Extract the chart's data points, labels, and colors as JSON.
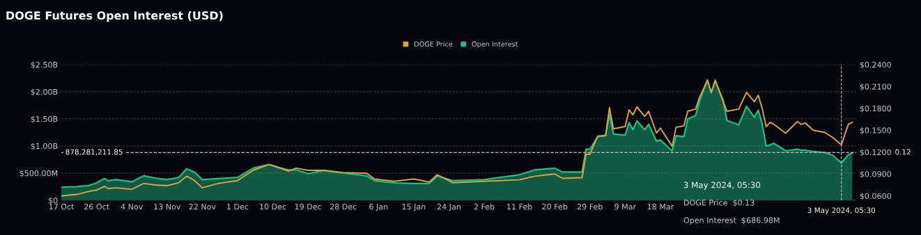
{
  "chart_data": {
    "type": "area",
    "title": "DOGE Futures Open Interest (USD)",
    "x": [
      "2023-10-17",
      "2023-10-21",
      "2023-10-24",
      "2023-10-26",
      "2023-10-28",
      "2023-10-29",
      "2023-10-31",
      "2023-11-04",
      "2023-11-07",
      "2023-11-10",
      "2023-11-13",
      "2023-11-16",
      "2023-11-18",
      "2023-11-20",
      "2023-11-22",
      "2023-11-26",
      "2023-12-01",
      "2023-12-05",
      "2023-12-09",
      "2023-12-11",
      "2023-12-14",
      "2023-12-16",
      "2023-12-19",
      "2023-12-23",
      "2023-12-28",
      "2024-01-03",
      "2024-01-05",
      "2024-01-10",
      "2024-01-15",
      "2024-01-19",
      "2024-01-21",
      "2024-01-25",
      "2024-02-02",
      "2024-02-11",
      "2024-02-15",
      "2024-02-20",
      "2024-02-22",
      "2024-02-27",
      "2024-02-28",
      "2024-02-29",
      "2024-03-02",
      "2024-03-04",
      "2024-03-05",
      "2024-03-06",
      "2024-03-09",
      "2024-03-10",
      "2024-03-11",
      "2024-03-12",
      "2024-03-14",
      "2024-03-15",
      "2024-03-17",
      "2024-03-18",
      "2024-03-21",
      "2024-03-22",
      "2024-03-24",
      "2024-03-25",
      "2024-03-27",
      "2024-03-28",
      "2024-03-30",
      "2024-03-31",
      "2024-04-01",
      "2024-04-03",
      "2024-04-04",
      "2024-04-07",
      "2024-04-09",
      "2024-04-11",
      "2024-04-12",
      "2024-04-13",
      "2024-04-14",
      "2024-04-15",
      "2024-04-16",
      "2024-04-19",
      "2024-04-22",
      "2024-04-23",
      "2024-04-24",
      "2024-04-26",
      "2024-04-29",
      "2024-05-01",
      "2024-05-03T05:30",
      "2024-05-05",
      "2024-05-06"
    ],
    "series": [
      {
        "name": "DOGE Price",
        "type": "line",
        "axis": "y2",
        "color": "#d9a441",
        "values": [
          0.06,
          0.062,
          0.066,
          0.068,
          0.073,
          0.07,
          0.071,
          0.069,
          0.077,
          0.075,
          0.074,
          0.078,
          0.087,
          0.081,
          0.071,
          0.077,
          0.081,
          0.095,
          0.103,
          0.1,
          0.094,
          0.098,
          0.095,
          0.095,
          0.092,
          0.091,
          0.083,
          0.08,
          0.083,
          0.079,
          0.089,
          0.078,
          0.08,
          0.082,
          0.087,
          0.09,
          0.084,
          0.085,
          0.117,
          0.117,
          0.142,
          0.143,
          0.181,
          0.152,
          0.155,
          0.178,
          0.171,
          0.182,
          0.169,
          0.176,
          0.146,
          0.153,
          0.128,
          0.154,
          0.156,
          0.176,
          0.179,
          0.195,
          0.218,
          0.202,
          0.219,
          0.19,
          0.176,
          0.179,
          0.202,
          0.189,
          0.198,
          0.18,
          0.155,
          0.161,
          0.158,
          0.146,
          0.162,
          0.158,
          0.16,
          0.15,
          0.147,
          0.14,
          0.13,
          0.158,
          0.161
        ]
      },
      {
        "name": "Open Interest",
        "color": "#1dbf85",
        "values": [
          240000000.0,
          250000000.0,
          270000000.0,
          320000000.0,
          400000000.0,
          360000000.0,
          380000000.0,
          340000000.0,
          450000000.0,
          410000000.0,
          380000000.0,
          420000000.0,
          580000000.0,
          520000000.0,
          380000000.0,
          400000000.0,
          420000000.0,
          590000000.0,
          660000000.0,
          610000000.0,
          560000000.0,
          560000000.0,
          490000000.0,
          550000000.0,
          500000000.0,
          450000000.0,
          360000000.0,
          320000000.0,
          310000000.0,
          310000000.0,
          450000000.0,
          360000000.0,
          380000000.0,
          470000000.0,
          560000000.0,
          590000000.0,
          520000000.0,
          520000000.0,
          940000000.0,
          940000000.0,
          1170000000.0,
          1190000000.0,
          1580000000.0,
          1220000000.0,
          1200000000.0,
          1430000000.0,
          1300000000.0,
          1460000000.0,
          1300000000.0,
          1400000000.0,
          1090000000.0,
          1110000000.0,
          910000000.0,
          1190000000.0,
          1170000000.0,
          1500000000.0,
          1560000000.0,
          1830000000.0,
          2220000000.0,
          1980000000.0,
          2200000000.0,
          1850000000.0,
          1470000000.0,
          1390000000.0,
          1730000000.0,
          1530000000.0,
          1660000000.0,
          1410000000.0,
          1000000000.0,
          1020000000.0,
          1050000000.0,
          910000000.0,
          940000000.0,
          920000000.0,
          920000000.0,
          900000000.0,
          880000000.0,
          830000000.0,
          687000000.0,
          840000000.0,
          870000000.0
        ]
      }
    ],
    "xlim": [
      "2023-10-17",
      "2024-05-07"
    ],
    "xticks": [
      {
        "value": "2023-10-17",
        "label": "17 Oct"
      },
      {
        "value": "2023-10-26",
        "label": "26 Oct"
      },
      {
        "value": "2023-11-04",
        "label": "4 Nov"
      },
      {
        "value": "2023-11-13",
        "label": "13 Nov"
      },
      {
        "value": "2023-11-22",
        "label": "22 Nov"
      },
      {
        "value": "2023-12-01",
        "label": "1 Dec"
      },
      {
        "value": "2023-12-10",
        "label": "10 Dec"
      },
      {
        "value": "2023-12-19",
        "label": "19 Dec"
      },
      {
        "value": "2023-12-28",
        "label": "28 Dec"
      },
      {
        "value": "2024-01-06",
        "label": "6 Jan"
      },
      {
        "value": "2024-01-15",
        "label": "15 Jan"
      },
      {
        "value": "2024-01-24",
        "label": "24 Jan"
      },
      {
        "value": "2024-02-02",
        "label": "2 Feb"
      },
      {
        "value": "2024-02-11",
        "label": "11 Feb"
      },
      {
        "value": "2024-02-20",
        "label": "20 Feb"
      },
      {
        "value": "2024-02-29",
        "label": "29 Feb"
      },
      {
        "value": "2024-03-09",
        "label": "9 Mar"
      },
      {
        "value": "2024-03-18",
        "label": "18 Mar"
      }
    ],
    "ylim": [
      0,
      2500000000
    ],
    "yticks": [
      {
        "value": 0,
        "label": "$0"
      },
      {
        "value": 500000000,
        "label": "$500.00M"
      },
      {
        "value": 1000000000,
        "label": "$1.00B"
      },
      {
        "value": 1500000000,
        "label": "$1.50B"
      },
      {
        "value": 2000000000,
        "label": "$2.00B"
      },
      {
        "value": 2500000000,
        "label": "$2.50B"
      }
    ],
    "y2lim": [
      0.054,
      0.24
    ],
    "y2ticks": [
      {
        "value": 0.06,
        "label": "$0.0600"
      },
      {
        "value": 0.09,
        "label": "$0.0900"
      },
      {
        "value": 0.12,
        "label": "$0.1200"
      },
      {
        "value": 0.15,
        "label": "$0.1500"
      },
      {
        "value": 0.18,
        "label": "$0.1800"
      },
      {
        "value": 0.21,
        "label": "$0.2100"
      },
      {
        "value": 0.24,
        "label": "$0.2400"
      }
    ],
    "ref_lines": [
      {
        "axis": "y",
        "value": 878281211.85,
        "label": "878,281,211.85",
        "color": "#bbbbbb",
        "line_style": "dashed"
      },
      {
        "axis": "x",
        "value": "2024-05-03T05:30",
        "label": "3 May 2024, 05:30",
        "color": "#bbbbbb",
        "line_style": "dashed"
      }
    ],
    "annotations": [
      "0.12",
      "3 May 2024, 05:30",
      "DOGE Price  $0.13",
      "Open Interest  $686.98M"
    ],
    "grid": "y",
    "legend": "top",
    "marker": "none",
    "line_style": "solid"
  }
}
